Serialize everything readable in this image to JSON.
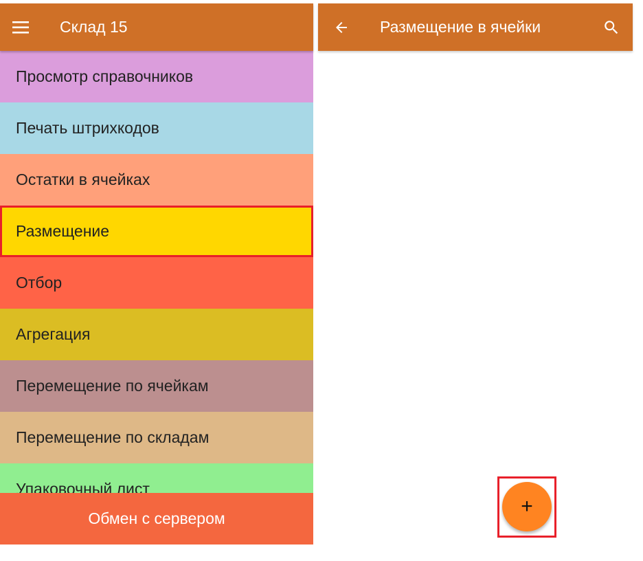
{
  "left": {
    "title": "Склад 15",
    "menu_icon": "hamburger-icon",
    "items": [
      {
        "label": "Просмотр справочников",
        "color": "#DB9DDC"
      },
      {
        "label": "Печать штрихкодов",
        "color": "#A8D8E6"
      },
      {
        "label": "Остатки в ячейках",
        "color": "#FFA07A"
      },
      {
        "label": "Размещение",
        "color": "#FFD700",
        "highlighted": true
      },
      {
        "label": "Отбор",
        "color": "#FF6347"
      },
      {
        "label": "Агрегация",
        "color": "#DBBD23"
      },
      {
        "label": "Перемещение по ячейкам",
        "color": "#BC8F8F"
      },
      {
        "label": "Перемещение по складам",
        "color": "#DEB887"
      },
      {
        "label": "Упаковочный лист",
        "color": "#90EE90"
      }
    ],
    "bottom_button": "Обмен с сервером"
  },
  "right": {
    "title": "Размещение в ячейки",
    "back_icon": "arrow-left-icon",
    "search_icon": "search-icon",
    "fab_label": "+"
  },
  "colors": {
    "header": "#CF7027",
    "highlight": "#E8202A",
    "fab": "#FF8421",
    "bottom": "#F4673F"
  }
}
